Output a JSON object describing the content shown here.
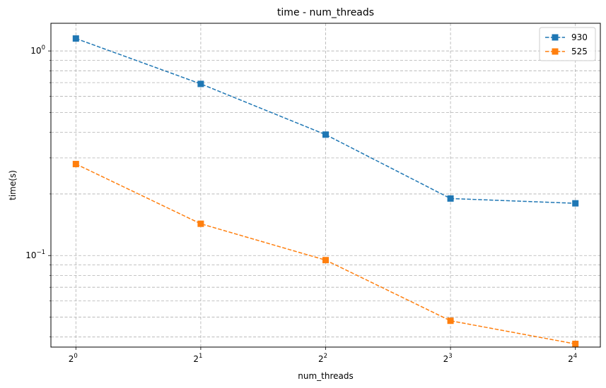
{
  "chart_data": {
    "type": "line",
    "title": "time - num_threads",
    "xlabel": "num_threads",
    "ylabel": "time(s)",
    "x": [
      1,
      2,
      4,
      8,
      16
    ],
    "x_tick_labels": [
      {
        "base": "2",
        "exp": "0"
      },
      {
        "base": "2",
        "exp": "1"
      },
      {
        "base": "2",
        "exp": "2"
      },
      {
        "base": "2",
        "exp": "3"
      },
      {
        "base": "2",
        "exp": "4"
      }
    ],
    "y_tick_labels": [
      {
        "value": 1,
        "base": "10",
        "exp": "0"
      },
      {
        "value": 0.1,
        "base": "10",
        "exp": "−1"
      }
    ],
    "xscale": "log2",
    "yscale": "log10",
    "xlim": [
      0.8706,
      18.378
    ],
    "ylim": [
      0.0357,
      1.365
    ],
    "grid": true,
    "legend_position": "top-right",
    "series": [
      {
        "name": "930",
        "color": "#1f77b4",
        "marker": "square",
        "linestyle": "dashed",
        "values": [
          1.15,
          0.69,
          0.39,
          0.19,
          0.18
        ]
      },
      {
        "name": "525",
        "color": "#ff7f0e",
        "marker": "square",
        "linestyle": "dashed",
        "values": [
          0.28,
          0.143,
          0.095,
          0.048,
          0.037
        ]
      }
    ]
  }
}
